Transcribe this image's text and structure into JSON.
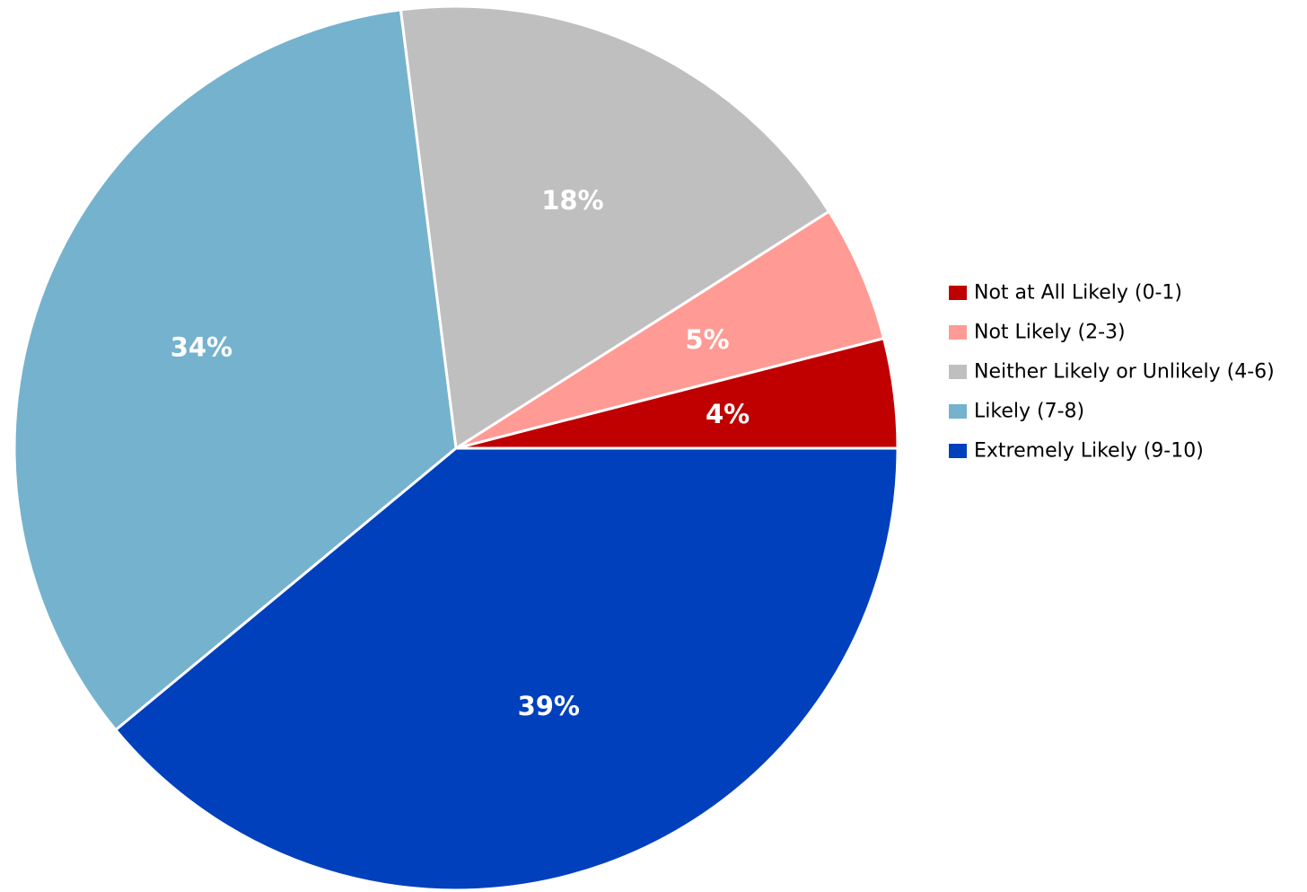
{
  "chart_data": {
    "type": "pie",
    "title": "",
    "categories": [
      "Not at All Likely (0-1)",
      "Not Likely (2-3)",
      "Neither Likely or Unlikely (4-6)",
      "Likely (7-8)",
      "Extremely Likely (9-10)"
    ],
    "values": [
      4,
      5,
      18,
      34,
      39
    ],
    "labels": [
      "4%",
      "5%",
      "18%",
      "34%",
      "39%"
    ],
    "colors": [
      "#c00000",
      "#ff9b94",
      "#bfbfbf",
      "#75b2cd",
      "#0040bd"
    ],
    "start_angle": "3 o'clock",
    "direction": "counterclockwise",
    "legend_position": "right"
  }
}
